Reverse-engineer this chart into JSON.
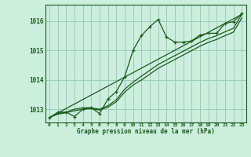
{
  "title": "Graphe pression niveau de la mer (hPa)",
  "background_color": "#cceedd",
  "plot_bg_color": "#cceedd",
  "grid_color": "#99ccbb",
  "line_color": "#1a5c1a",
  "xlim": [
    -0.5,
    23.5
  ],
  "ylim": [
    1012.55,
    1016.55
  ],
  "yticks": [
    1013,
    1014,
    1015,
    1016
  ],
  "series1_x": [
    0,
    1,
    2,
    3,
    4,
    5,
    6,
    7,
    8,
    9,
    10,
    11,
    12,
    13,
    14,
    15,
    16,
    17,
    18,
    19,
    20,
    21,
    22,
    23
  ],
  "series1_y": [
    1012.7,
    1012.9,
    1012.9,
    1012.75,
    1013.0,
    1013.05,
    1012.85,
    1013.35,
    1013.6,
    1014.1,
    1015.0,
    1015.5,
    1015.8,
    1016.05,
    1015.45,
    1015.28,
    1015.28,
    1015.32,
    1015.52,
    1015.58,
    1015.58,
    1015.92,
    1015.97,
    1016.25
  ],
  "series2_x": [
    0,
    1,
    2,
    3,
    4,
    5,
    6,
    7,
    8,
    9,
    10,
    11,
    12,
    13,
    14,
    15,
    16,
    17,
    18,
    19,
    20,
    21,
    22,
    23
  ],
  "series2_y": [
    1012.72,
    1012.85,
    1012.9,
    1013.0,
    1013.05,
    1013.05,
    1013.0,
    1013.12,
    1013.32,
    1013.68,
    1013.92,
    1014.12,
    1014.32,
    1014.52,
    1014.67,
    1014.82,
    1014.97,
    1015.12,
    1015.27,
    1015.4,
    1015.5,
    1015.63,
    1015.75,
    1016.22
  ],
  "series3_x": [
    0,
    1,
    2,
    3,
    4,
    5,
    6,
    7,
    8,
    9,
    10,
    11,
    12,
    13,
    14,
    15,
    16,
    17,
    18,
    19,
    20,
    21,
    22,
    23
  ],
  "series3_y": [
    1012.72,
    1012.83,
    1012.88,
    1012.95,
    1013.0,
    1013.02,
    1012.97,
    1013.07,
    1013.25,
    1013.58,
    1013.82,
    1013.99,
    1014.19,
    1014.39,
    1014.54,
    1014.69,
    1014.84,
    1014.99,
    1015.14,
    1015.27,
    1015.37,
    1015.5,
    1015.62,
    1016.1
  ],
  "series4_x": [
    0,
    23
  ],
  "series4_y": [
    1012.72,
    1016.22
  ]
}
